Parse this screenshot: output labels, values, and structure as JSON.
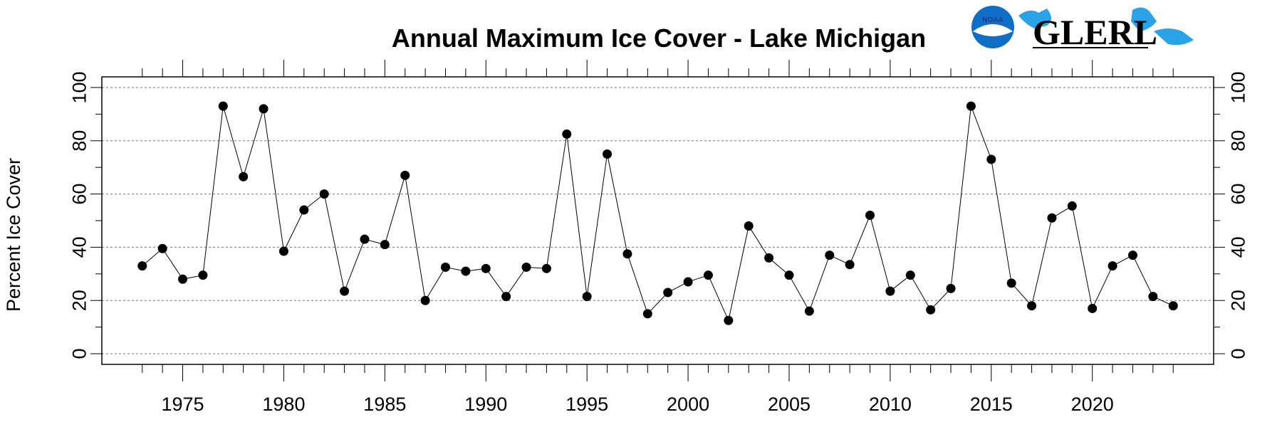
{
  "logos": {
    "noaa_text": "NOAA",
    "glerl_text": "GLERL",
    "noaa_color": "#0f6fc6",
    "lakes_color": "#29a3e6"
  },
  "chart_data": {
    "type": "line",
    "title": "Annual Maximum Ice Cover - Lake Michigan",
    "xlabel": "",
    "ylabel": "Percent Ice Cover",
    "xlim": [
      1971,
      2026
    ],
    "ylim": [
      -4,
      104
    ],
    "x_ticks": [
      1975,
      1980,
      1985,
      1990,
      1995,
      2000,
      2005,
      2010,
      2015,
      2020
    ],
    "y_ticks": [
      0,
      20,
      40,
      60,
      80,
      100
    ],
    "grid": "horizontal-dotted",
    "legend": "none",
    "x": [
      1973,
      1974,
      1975,
      1976,
      1977,
      1978,
      1979,
      1980,
      1981,
      1982,
      1983,
      1984,
      1985,
      1986,
      1987,
      1988,
      1989,
      1990,
      1991,
      1992,
      1993,
      1994,
      1995,
      1996,
      1997,
      1998,
      1999,
      2000,
      2001,
      2002,
      2003,
      2004,
      2005,
      2006,
      2007,
      2008,
      2009,
      2010,
      2011,
      2012,
      2013,
      2014,
      2015,
      2016,
      2017,
      2018,
      2019,
      2020,
      2021,
      2022,
      2023,
      2024
    ],
    "y": [
      33,
      39.5,
      28,
      29.5,
      93,
      66.5,
      92,
      38.5,
      54,
      60,
      23.5,
      43,
      41,
      67,
      20,
      32.5,
      31,
      32,
      21.5,
      32.5,
      32,
      82.5,
      21.5,
      75,
      37.5,
      15,
      23,
      27,
      29.5,
      12.5,
      48,
      36,
      29.5,
      16,
      37,
      33.5,
      52,
      23.5,
      29.5,
      16.5,
      24.5,
      93,
      73,
      26.5,
      18,
      51,
      55.5,
      17,
      33,
      37,
      21.5,
      18
    ]
  }
}
